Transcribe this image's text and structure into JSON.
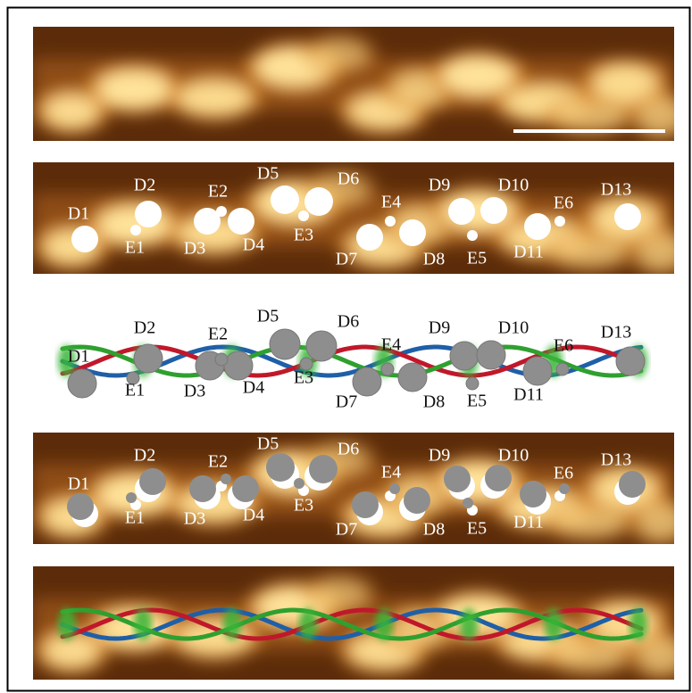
{
  "labeled_panels": [
    {
      "labels": [
        "D1",
        "D2",
        "D3",
        "D4",
        "D5",
        "D6",
        "D7",
        "D8",
        "D9",
        "D10",
        "D11",
        "D13",
        "E1",
        "E2",
        "E3",
        "E4",
        "E5",
        "E6"
      ]
    },
    {
      "labels": [
        "D1",
        "D2",
        "D3",
        "D4",
        "D5",
        "D6",
        "D7",
        "D8",
        "D9",
        "D10",
        "D11",
        "D13",
        "E1",
        "E2",
        "E3",
        "E4",
        "E5",
        "E6"
      ]
    },
    {
      "labels": [
        "D1",
        "D2",
        "D3",
        "D4",
        "D5",
        "D6",
        "D7",
        "D8",
        "D9",
        "D10",
        "D11",
        "D13",
        "E1",
        "E2",
        "E3",
        "E4",
        "E5",
        "E6"
      ]
    }
  ]
}
